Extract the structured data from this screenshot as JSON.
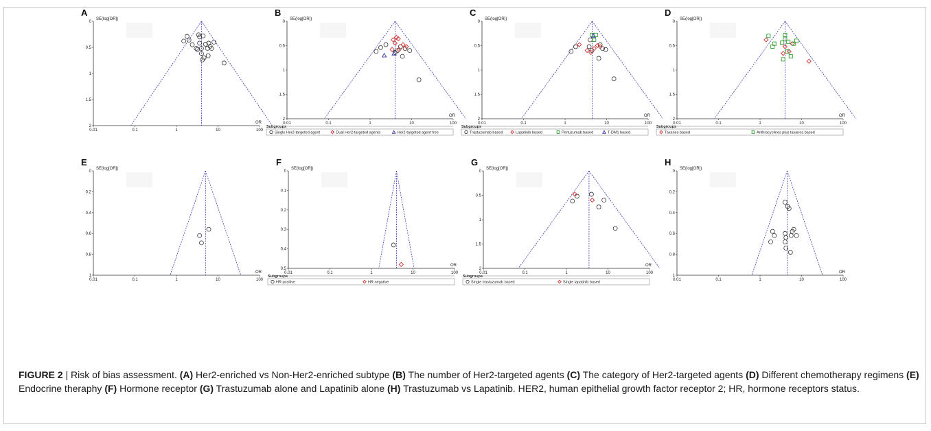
{
  "caption": {
    "figure_label": "FIGURE 2",
    "separator": " | ",
    "title": "Risk of bias assessment.",
    "items": [
      {
        "tag": "(A)",
        "text": " Her2-enriched vs Non-Her2-enriched subtype "
      },
      {
        "tag": "(B)",
        "text": " The number of Her2-targeted agents "
      },
      {
        "tag": "(C)",
        "text": " The category of Her2-targeted agents "
      },
      {
        "tag": "(D)",
        "text": " Different chemotherapy regimens "
      },
      {
        "tag": "(E)",
        "text": " Endocrine theraphy "
      },
      {
        "tag": "(F)",
        "text": " Hormone receptor "
      },
      {
        "tag": "(G)",
        "text": " Trastuzumab alone and Lapatinib alone "
      },
      {
        "tag": "(H)",
        "text": " Trastuzumab vs Lapatinib."
      }
    ],
    "abbrev": " HER2, human epithelial growth factor receptor 2; HR, hormone receptors status."
  },
  "colors": {
    "circle": "#333333",
    "diamond": "#d03030",
    "square": "#2e9e2e",
    "triangle": "#3838a8",
    "funnel": "#3b3bb5"
  },
  "chart_data": [
    {
      "panel": "A",
      "type": "scatter",
      "ylabel": "SE(log[OR])",
      "xlabel": "OR",
      "xscale": "log",
      "xlim": [
        0.01,
        100
      ],
      "ylim": [
        2,
        0
      ],
      "xticks": [
        "0.01",
        "0.1",
        "1",
        "10",
        "100"
      ],
      "yticks": [
        "0",
        "0.5",
        "1",
        "1.5",
        "2"
      ],
      "pooled_or": 4.0,
      "legend": null,
      "series": [
        {
          "marker": "circle",
          "points": [
            [
              1.5,
              0.38
            ],
            [
              1.8,
              0.29
            ],
            [
              2.0,
              0.36
            ],
            [
              2.4,
              0.45
            ],
            [
              3.0,
              0.52
            ],
            [
              3.4,
              0.26
            ],
            [
              3.6,
              0.3
            ],
            [
              3.6,
              0.42
            ],
            [
              4.0,
              0.52
            ],
            [
              4.0,
              0.62
            ],
            [
              4.4,
              0.28
            ],
            [
              4.6,
              0.7
            ],
            [
              5.0,
              0.44
            ],
            [
              5.6,
              0.52
            ],
            [
              6.0,
              0.42
            ],
            [
              6.5,
              0.48
            ],
            [
              7.0,
              0.52
            ],
            [
              8.0,
              0.4
            ],
            [
              14.0,
              0.8
            ],
            [
              3.2,
              0.54
            ],
            [
              4.2,
              0.74
            ],
            [
              5.8,
              0.66
            ]
          ]
        }
      ]
    },
    {
      "panel": "B",
      "type": "scatter",
      "ylabel": "SE(log[OR])",
      "xlabel": "OR",
      "xscale": "log",
      "xlim": [
        0.01,
        100
      ],
      "ylim": [
        2,
        0
      ],
      "xticks": [
        "0.01",
        "0.1",
        "1",
        "10",
        "100"
      ],
      "yticks": [
        "0",
        "0.5",
        "1",
        "1.5",
        "2"
      ],
      "pooled_or": 4.0,
      "legend": {
        "title": "Subgroups",
        "entries": [
          {
            "marker": "circle",
            "label": "Single Her2-targeted agent"
          },
          {
            "marker": "diamond",
            "label": "Dual Her2-targeted agents"
          },
          {
            "marker": "triangle",
            "label": "Her2-targeted agent free"
          }
        ]
      },
      "series": [
        {
          "marker": "circle",
          "points": [
            [
              1.4,
              0.62
            ],
            [
              1.8,
              0.54
            ],
            [
              2.4,
              0.48
            ],
            [
              4.0,
              0.64
            ],
            [
              5.4,
              0.52
            ],
            [
              6.0,
              0.72
            ],
            [
              7.0,
              0.56
            ],
            [
              9.0,
              0.6
            ],
            [
              15.0,
              1.2
            ],
            [
              4.6,
              0.6
            ]
          ]
        },
        {
          "marker": "diamond",
          "points": [
            [
              3.6,
              0.38
            ],
            [
              4.3,
              0.33
            ],
            [
              4.8,
              0.36
            ],
            [
              3.4,
              0.58
            ],
            [
              4.0,
              0.45
            ],
            [
              5.0,
              0.58
            ],
            [
              6.2,
              0.48
            ],
            [
              7.5,
              0.52
            ]
          ]
        },
        {
          "marker": "triangle",
          "points": [
            [
              2.2,
              0.7
            ],
            [
              3.8,
              0.66
            ]
          ]
        }
      ]
    },
    {
      "panel": "C",
      "type": "scatter",
      "ylabel": "SE(log[OR])",
      "xlabel": "OR",
      "xscale": "log",
      "xlim": [
        0.01,
        100
      ],
      "ylim": [
        2,
        0
      ],
      "xticks": [
        "0.01",
        "0.1",
        "1",
        "10",
        "100"
      ],
      "yticks": [
        "0",
        "0.5",
        "1",
        "1.5",
        "2"
      ],
      "pooled_or": 4.5,
      "legend": {
        "title": "Subgroups",
        "entries": [
          {
            "marker": "circle",
            "label": "Trastuzumab based"
          },
          {
            "marker": "diamond",
            "label": "Lapatinib based"
          },
          {
            "marker": "square",
            "label": "Pertuzumab based"
          },
          {
            "marker": "triangle",
            "label": "T-DM1 based"
          }
        ]
      },
      "series": [
        {
          "marker": "circle",
          "points": [
            [
              1.4,
              0.62
            ],
            [
              1.8,
              0.52
            ],
            [
              3.8,
              0.52
            ],
            [
              4.0,
              0.38
            ],
            [
              4.4,
              0.6
            ],
            [
              6.5,
              0.76
            ],
            [
              7.0,
              0.48
            ],
            [
              8.0,
              0.56
            ],
            [
              9.5,
              0.58
            ],
            [
              15.0,
              1.18
            ]
          ]
        },
        {
          "marker": "diamond",
          "points": [
            [
              2.2,
              0.48
            ],
            [
              3.4,
              0.6
            ],
            [
              4.2,
              0.64
            ],
            [
              5.0,
              0.56
            ],
            [
              6.0,
              0.5
            ],
            [
              7.0,
              0.52
            ]
          ]
        },
        {
          "marker": "square",
          "points": [
            [
              4.5,
              0.28
            ],
            [
              5.5,
              0.28
            ],
            [
              5.0,
              0.38
            ]
          ]
        },
        {
          "marker": "triangle",
          "points": [
            [
              4.8,
              0.3
            ]
          ]
        }
      ]
    },
    {
      "panel": "D",
      "type": "scatter",
      "ylabel": "SE(log[OR])",
      "xlabel": "OR",
      "xscale": "log",
      "xlim": [
        0.01,
        100
      ],
      "ylim": [
        2,
        0
      ],
      "xticks": [
        "0.01",
        "0.1",
        "1",
        "10",
        "100"
      ],
      "yticks": [
        "0",
        "0.5",
        "1",
        "1.5",
        "2"
      ],
      "pooled_or": 4.0,
      "legend": {
        "title": "Subgroups",
        "entries": [
          {
            "marker": "diamond",
            "label": "Taxanes based"
          },
          {
            "marker": "square",
            "label": "Anthracyclines plus taxanes based"
          }
        ]
      },
      "series": [
        {
          "marker": "diamond",
          "points": [
            [
              1.4,
              0.38
            ],
            [
              4.0,
              0.52
            ],
            [
              5.0,
              0.62
            ],
            [
              6.0,
              0.46
            ],
            [
              15.0,
              0.82
            ],
            [
              3.6,
              0.66
            ]
          ]
        },
        {
          "marker": "square",
          "points": [
            [
              1.6,
              0.3
            ],
            [
              2.0,
              0.52
            ],
            [
              2.2,
              0.46
            ],
            [
              3.4,
              0.44
            ],
            [
              4.0,
              0.28
            ],
            [
              4.0,
              0.36
            ],
            [
              4.5,
              0.62
            ],
            [
              4.8,
              0.42
            ],
            [
              5.5,
              0.72
            ],
            [
              6.5,
              0.46
            ],
            [
              7.5,
              0.4
            ],
            [
              3.6,
              0.78
            ]
          ]
        }
      ]
    },
    {
      "panel": "E",
      "type": "scatter",
      "ylabel": "SE(log[OR])",
      "xlabel": "OR",
      "xscale": "log",
      "xlim": [
        0.01,
        100
      ],
      "ylim": [
        1,
        0
      ],
      "xticks": [
        "0.01",
        "0.1",
        "1",
        "10",
        "100"
      ],
      "yticks": [
        "0",
        "0.2",
        "0.4",
        "0.6",
        "0.8",
        "1"
      ],
      "pooled_or": 5.0,
      "legend": null,
      "series": [
        {
          "marker": "circle",
          "points": [
            [
              3.6,
              0.62
            ],
            [
              4.0,
              0.69
            ],
            [
              6.0,
              0.56
            ]
          ]
        }
      ]
    },
    {
      "panel": "F",
      "type": "scatter",
      "ylabel": "SE(log[OR])",
      "xlabel": "OR",
      "xscale": "log",
      "xlim": [
        0.01,
        100
      ],
      "ylim": [
        0.5,
        0
      ],
      "xticks": [
        "0.01",
        "0.1",
        "1",
        "10",
        "100"
      ],
      "yticks": [
        "0",
        "0.1",
        "0.2",
        "0.3",
        "0.4",
        "0.5"
      ],
      "pooled_or": 4.0,
      "legend": {
        "title": "Subgroups",
        "entries": [
          {
            "marker": "circle",
            "label": "HR positive"
          },
          {
            "marker": "diamond",
            "label": "HR negative"
          }
        ]
      },
      "series": [
        {
          "marker": "circle",
          "points": [
            [
              3.4,
              0.38
            ]
          ]
        },
        {
          "marker": "diamond",
          "points": [
            [
              5.2,
              0.48
            ]
          ]
        }
      ]
    },
    {
      "panel": "G",
      "type": "scatter",
      "ylabel": "SE(log[OR])",
      "xlabel": "OR",
      "xscale": "log",
      "xlim": [
        0.01,
        100
      ],
      "ylim": [
        2,
        0
      ],
      "xticks": [
        "0.01",
        "0.1",
        "1",
        "10",
        "100"
      ],
      "yticks": [
        "0",
        "0.5",
        "1",
        "1.5",
        "2"
      ],
      "pooled_or": 3.5,
      "legend": {
        "title": "Subgroups",
        "entries": [
          {
            "marker": "circle",
            "label": "Single trastuzumab based"
          },
          {
            "marker": "diamond",
            "label": "Single lapatinib based"
          }
        ]
      },
      "series": [
        {
          "marker": "circle",
          "points": [
            [
              1.4,
              0.62
            ],
            [
              1.8,
              0.52
            ],
            [
              4.0,
              0.48
            ],
            [
              6.0,
              0.74
            ],
            [
              8.0,
              0.6
            ],
            [
              15.0,
              1.18
            ]
          ]
        },
        {
          "marker": "diamond",
          "points": [
            [
              1.6,
              0.48
            ],
            [
              4.2,
              0.6
            ]
          ]
        }
      ]
    },
    {
      "panel": "H",
      "type": "scatter",
      "ylabel": "SE(log[OR])",
      "xlabel": "OR",
      "xscale": "log",
      "xlim": [
        0.01,
        100
      ],
      "ylim": [
        1,
        0
      ],
      "xticks": [
        "0.01",
        "0.1",
        "1",
        "10",
        "100"
      ],
      "yticks": [
        "0",
        "0.2",
        "0.4",
        "0.6",
        "0.8",
        "1"
      ],
      "pooled_or": 4.5,
      "legend": null,
      "series": [
        {
          "marker": "circle",
          "points": [
            [
              1.8,
              0.68
            ],
            [
              2.0,
              0.58
            ],
            [
              2.2,
              0.62
            ],
            [
              4.0,
              0.3
            ],
            [
              4.0,
              0.6
            ],
            [
              4.2,
              0.64
            ],
            [
              4.2,
              0.74
            ],
            [
              4.6,
              0.34
            ],
            [
              5.0,
              0.36
            ],
            [
              5.4,
              0.78
            ],
            [
              5.6,
              0.62
            ],
            [
              6.0,
              0.58
            ],
            [
              6.5,
              0.56
            ],
            [
              7.5,
              0.62
            ],
            [
              4.0,
              0.68
            ]
          ]
        }
      ]
    }
  ]
}
